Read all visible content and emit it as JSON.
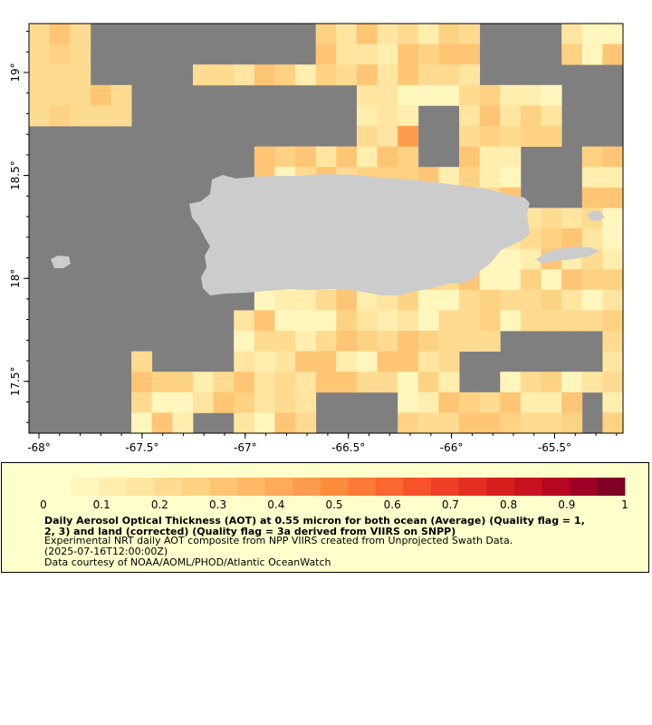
{
  "map": {
    "lon_ticks": [
      "-68°",
      "-67.5°",
      "-67°",
      "-66.5°",
      "-66°",
      "-65.5°"
    ],
    "lat_ticks": [
      "19°",
      "18.5°",
      "18°",
      "17.5°"
    ],
    "colors": {
      "no_data": "#7f7f7f",
      "land": "#cccccc",
      "frame": "#000000"
    }
  },
  "legend": {
    "tick_labels": [
      "0",
      "0.1",
      "0.2",
      "0.3",
      "0.4",
      "0.5",
      "0.6",
      "0.7",
      "0.8",
      "0.9",
      "1"
    ],
    "title_line1": "Daily Aerosol Optical Thickness (AOT) at 0.55 micron for both ocean (Average) (Quality flag = 1,",
    "title_line2": "2, 3) and land (corrected) (Quality flag = 3a derived from VIIRS on SNPP)",
    "description": "Experimental NRT daily AOT composite from NPP VIIRS created from Unprojected Swath Data.",
    "date": "(2025-07-16T12:00:00Z)",
    "credit": "Data courtesy of NOAA/AOML/PHOD/Atlantic OceanWatch",
    "palette": [
      "#ffffcc",
      "#fff6bd",
      "#ffeeae",
      "#ffe5a0",
      "#fedb91",
      "#fed283",
      "#fec574",
      "#feb866",
      "#fdaa5a",
      "#fd9c4f",
      "#fd8d3c",
      "#fc7a37",
      "#fc6631",
      "#f8522b",
      "#f03f26",
      "#e42e21",
      "#d7201e",
      "#c8131f",
      "#b60622",
      "#a00025",
      "#800026"
    ]
  }
}
